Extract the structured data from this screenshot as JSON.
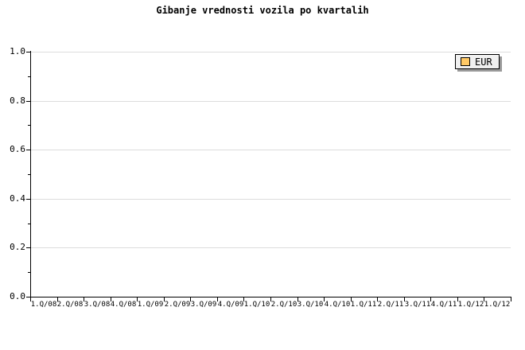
{
  "title": "Gibanje vrednosti vozila po kvartalih",
  "legend": {
    "items": [
      {
        "label": "EUR",
        "color": "#ffc966"
      }
    ]
  },
  "colors": {
    "background": "#ffffff",
    "axis": "#000000",
    "grid": "#dcdcdc",
    "text": "#000000",
    "legend_background": "#f0f0f0",
    "legend_border": "#000000",
    "legend_shadow": "#999999",
    "series_eur": "#ffc966"
  },
  "chart_data": {
    "type": "line",
    "title": "Gibanje vrednosti vozila po kvartalih",
    "categories": [
      "1.Q/08",
      "2.Q/08",
      "3.Q/08",
      "4.Q/08",
      "1.Q/09",
      "2.Q/09",
      "3.Q/09",
      "4.Q/09",
      "1.Q/10",
      "2.Q/10",
      "3.Q/10",
      "4.Q/10",
      "1.Q/11",
      "2.Q/11",
      "3.Q/11",
      "4.Q/11",
      "1.Q/12",
      "1.Q/12"
    ],
    "series": [
      {
        "name": "EUR",
        "color": "#ffc966",
        "values": []
      }
    ],
    "xlabel": "",
    "ylabel": "",
    "ylim": [
      0.0,
      1.0
    ],
    "ytick_labels": [
      "0.0",
      "0.2",
      "0.4",
      "0.6",
      "0.8",
      "1.0"
    ],
    "ytick_major_step": 0.2,
    "ytick_minor_step": 0.1,
    "grid": "horizontal-major",
    "legend_position": "top-right",
    "x_labels_between_ticks": true,
    "plot_is_empty": true
  }
}
